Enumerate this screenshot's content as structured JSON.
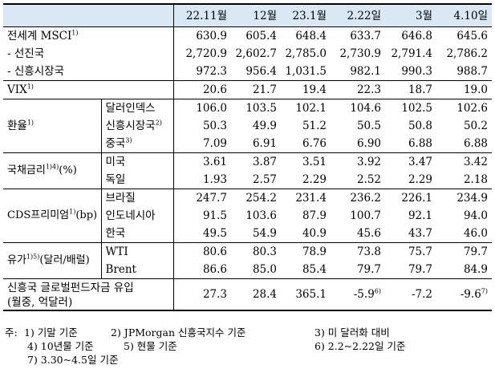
{
  "header": [
    "22.11월",
    "12월",
    "23.1월",
    "2.22일",
    "3월",
    "4.10일"
  ],
  "rows": [
    {
      "group": "전세계 MSCI",
      "sup": "1)",
      "values": [
        "630.9",
        "605.4",
        "648.4",
        "633.7",
        "646.8",
        "645.6"
      ]
    },
    {
      "group": "- 선진국",
      "values": [
        "2,720.9",
        "2,602.7",
        "2,785.0",
        "2,730.9",
        "2,791.4",
        "2,786.2"
      ]
    },
    {
      "group": "- 신흥시장국",
      "values": [
        "972.3",
        "956.4",
        "1,031.5",
        "982.1",
        "990.3",
        "988.7"
      ]
    },
    {
      "group": "VIX",
      "sup": "1)",
      "values": [
        "20.6",
        "21.7",
        "19.4",
        "22.3",
        "18.7",
        "19.0"
      ]
    },
    {
      "group": "환율",
      "sup": "1)",
      "sub": "달러인덱스",
      "values": [
        "106.0",
        "103.5",
        "102.1",
        "104.6",
        "102.5",
        "102.6"
      ]
    },
    {
      "sub": "신흥시장국",
      "subsup": "2)",
      "values": [
        "50.3",
        "49.9",
        "51.2",
        "50.5",
        "50.8",
        "50.2"
      ]
    },
    {
      "sub": "중국",
      "subsup": "3)",
      "values": [
        "7.09",
        "6.91",
        "6.76",
        "6.90",
        "6.88",
        "6.88"
      ]
    },
    {
      "group": "국채금리",
      "sup": "1)4)",
      "after": "(%)",
      "sub": "미국",
      "values": [
        "3.61",
        "3.87",
        "3.51",
        "3.92",
        "3.47",
        "3.42"
      ]
    },
    {
      "sub": "독일",
      "values": [
        "1.93",
        "2.57",
        "2.29",
        "2.52",
        "2.29",
        "2.18"
      ]
    },
    {
      "group": "CDS프리미엄",
      "sup": "1)",
      "after": "(bp)",
      "sub": "브라질",
      "values": [
        "247.7",
        "254.2",
        "231.4",
        "236.2",
        "226.1",
        "234.9"
      ]
    },
    {
      "sub": "인도네시아",
      "values": [
        "91.5",
        "103.6",
        "87.9",
        "100.7",
        "92.1",
        "94.0"
      ]
    },
    {
      "sub": "한국",
      "values": [
        "49.5",
        "54.9",
        "40.9",
        "45.6",
        "43.7",
        "46.0"
      ]
    },
    {
      "group": "유가",
      "sup": "1)5)",
      "after": "(달러/배럴)",
      "sub": "WTI",
      "values": [
        "80.6",
        "80.3",
        "78.9",
        "73.8",
        "75.7",
        "79.7"
      ]
    },
    {
      "sub": "Brent",
      "values": [
        "86.6",
        "85.0",
        "85.4",
        "79.7",
        "79.7",
        "84.9"
      ]
    },
    {
      "group": "신흥국 글로벌펀드자금 유입",
      "group2": "(월중, 억달러)",
      "values": [
        "27.3",
        "28.4",
        "365.1",
        "-5.9",
        "-7.2",
        "-9.6"
      ],
      "value_sups": [
        "",
        "",
        "",
        "6)",
        "",
        "7)"
      ]
    }
  ],
  "notes": {
    "lead": "주:",
    "n1": "1) 기말 기준",
    "n2": "2) JPMorgan 신흥국지수 기준",
    "n3": "3) 미 달러화 대비",
    "n4": "4) 10년물 기준",
    "n5": "5) 현물 기준",
    "n6": "6) 2.2~2.22일 기준",
    "n7": "7) 3.30~4.5일 기준"
  }
}
